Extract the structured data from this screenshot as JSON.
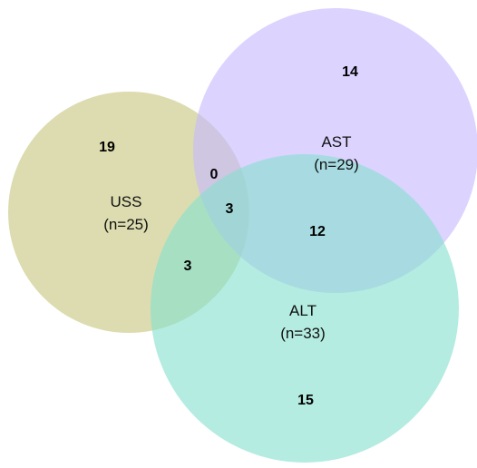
{
  "sets": [
    {
      "name": "USS",
      "size_label": "(n=25)",
      "color": "#c6c680"
    },
    {
      "name": "AST",
      "size_label": "(n=29)",
      "color": "#c7b8ff"
    },
    {
      "name": "ALT",
      "size_label": "(n=33)",
      "color": "#86e0cf"
    }
  ],
  "regions": {
    "uss_only": "19",
    "ast_only": "14",
    "alt_only": "15",
    "uss_ast": "0",
    "uss_alt": "3",
    "ast_alt": "12",
    "uss_ast_alt": "3"
  }
}
